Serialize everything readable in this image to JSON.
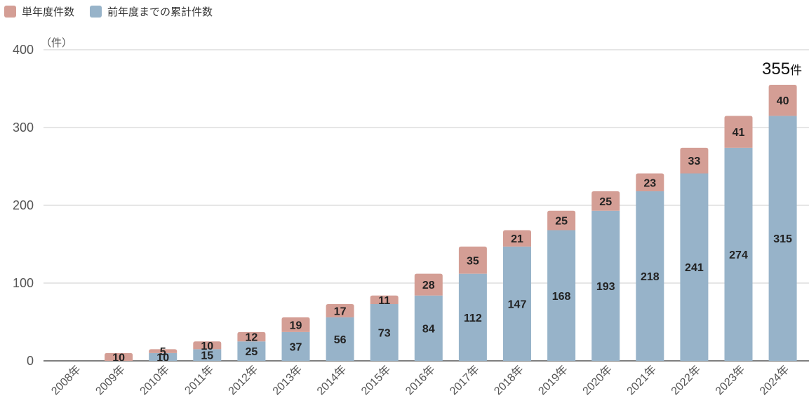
{
  "chart_data": {
    "type": "bar",
    "stacked": true,
    "categories": [
      "2008年",
      "2009年",
      "2010年",
      "2011年",
      "2012年",
      "2013年",
      "2014年",
      "2015年",
      "2016年",
      "2017年",
      "2018年",
      "2019年",
      "2020年",
      "2021年",
      "2022年",
      "2023年",
      "2024年"
    ],
    "series": [
      {
        "name": "前年度までの累計件数",
        "color": "#97b3c9",
        "values": [
          0,
          0,
          10,
          15,
          25,
          37,
          56,
          73,
          84,
          112,
          147,
          168,
          193,
          218,
          241,
          274,
          315
        ]
      },
      {
        "name": "単年度件数",
        "color": "#d49e95",
        "values": [
          0,
          10,
          5,
          10,
          12,
          19,
          17,
          11,
          28,
          35,
          21,
          25,
          25,
          23,
          33,
          41,
          40
        ]
      }
    ],
    "ylim": [
      0,
      400
    ],
    "yticks": [
      0,
      100,
      200,
      300,
      400
    ],
    "y_unit": "（件）",
    "grid": true,
    "legend_position": "top-left",
    "annotation": {
      "number": "355",
      "unit": "件"
    }
  }
}
